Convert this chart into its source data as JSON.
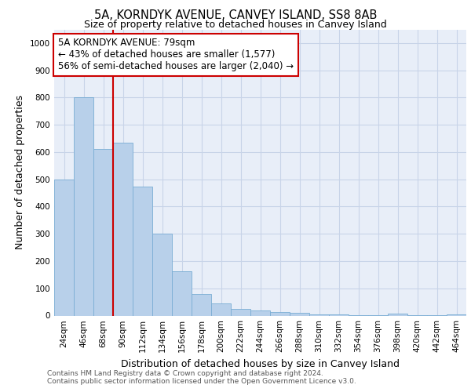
{
  "title_line1": "5A, KORNDYK AVENUE, CANVEY ISLAND, SS8 8AB",
  "title_line2": "Size of property relative to detached houses in Canvey Island",
  "xlabel": "Distribution of detached houses by size in Canvey Island",
  "ylabel": "Number of detached properties",
  "categories": [
    "24sqm",
    "46sqm",
    "68sqm",
    "90sqm",
    "112sqm",
    "134sqm",
    "156sqm",
    "178sqm",
    "200sqm",
    "222sqm",
    "244sqm",
    "266sqm",
    "288sqm",
    "310sqm",
    "332sqm",
    "354sqm",
    "376sqm",
    "398sqm",
    "420sqm",
    "442sqm",
    "464sqm"
  ],
  "values": [
    500,
    800,
    610,
    635,
    472,
    302,
    163,
    78,
    45,
    25,
    18,
    12,
    10,
    5,
    3,
    2,
    1,
    8,
    1,
    1,
    5
  ],
  "bar_color": "#b8d0ea",
  "bar_edge_color": "#7aadd4",
  "vline_x": 2.5,
  "vline_color": "#cc0000",
  "annotation_text": "5A KORNDYK AVENUE: 79sqm\n← 43% of detached houses are smaller (1,577)\n56% of semi-detached houses are larger (2,040) →",
  "annotation_box_color": "#ffffff",
  "annotation_box_edge_color": "#cc0000",
  "ylim": [
    0,
    1050
  ],
  "yticks": [
    0,
    100,
    200,
    300,
    400,
    500,
    600,
    700,
    800,
    900,
    1000
  ],
  "grid_color": "#c8d4e8",
  "background_color": "#e8eef8",
  "footer_line1": "Contains HM Land Registry data © Crown copyright and database right 2024.",
  "footer_line2": "Contains public sector information licensed under the Open Government Licence v3.0.",
  "title_fontsize": 10.5,
  "subtitle_fontsize": 9,
  "axis_label_fontsize": 9,
  "tick_fontsize": 7.5,
  "annotation_fontsize": 8.5,
  "footer_fontsize": 6.5
}
